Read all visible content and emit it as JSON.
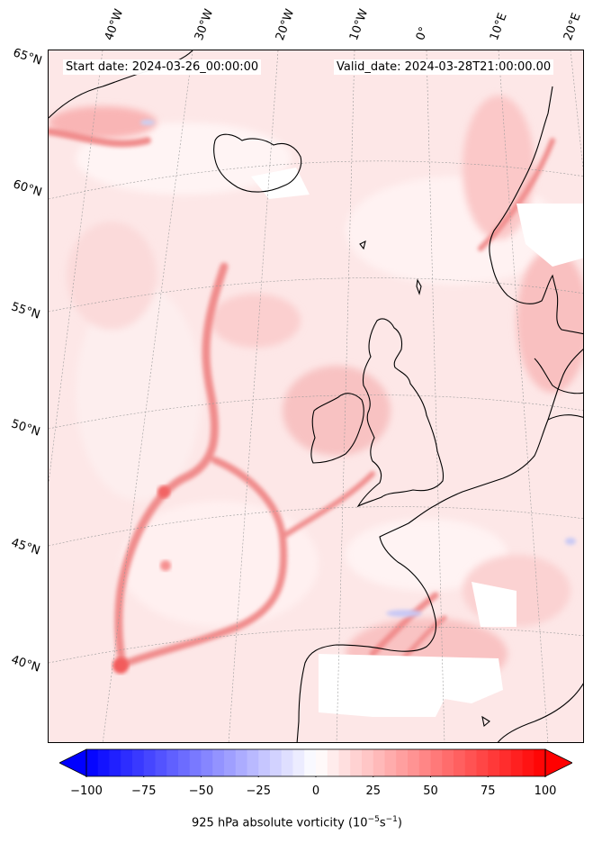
{
  "header": {
    "start_date": "Start date: 2024-03-26_00:00:00",
    "valid_date": "Valid_date: 2024-03-28T21:00:00.00"
  },
  "lon_labels": [
    "40°W",
    "30°W",
    "20°W",
    "10°W",
    "0°",
    "10°E",
    "20°E"
  ],
  "lat_labels": [
    "65°N",
    "60°N",
    "55°N",
    "50°N",
    "45°N",
    "40°N"
  ],
  "colorbar": {
    "min": -100,
    "max": 100,
    "ticks": [
      "−100",
      "−75",
      "−50",
      "−25",
      "0",
      "25",
      "50",
      "75",
      "100"
    ],
    "label": "925 hPa absolute vorticity (10",
    "label_exp1": "−5",
    "label_mid": "s",
    "label_exp2": "−1",
    "label_end": ")",
    "cmap": "bwr",
    "extend": "both"
  },
  "colors": {
    "negative": "#0000ff",
    "neutral": "#ffffff",
    "positive": "#ff0000",
    "coastline": "#000000"
  }
}
